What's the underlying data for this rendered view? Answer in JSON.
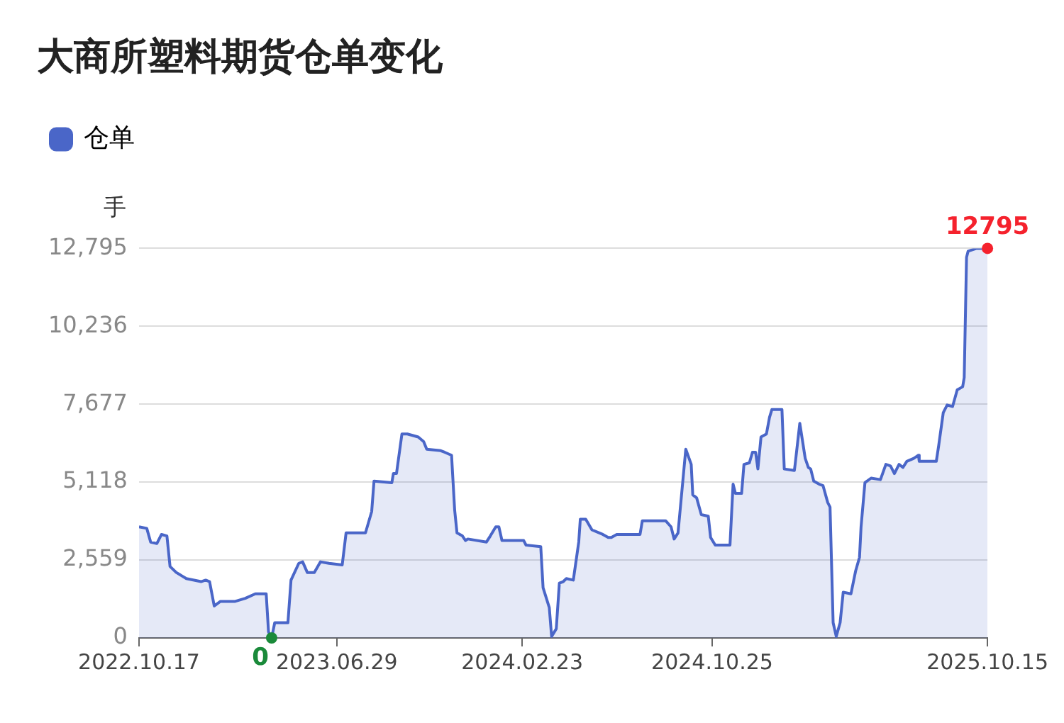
{
  "chart_data": {
    "type": "area",
    "title": "大商所塑料期货仓单变化",
    "ylabel": "手",
    "legend": "top left",
    "grid": "y",
    "x": [
      "2022-10-17",
      "2022-10-27",
      "2022-11-01",
      "2022-11-09",
      "2022-11-15",
      "2022-11-22",
      "2022-11-26",
      "2022-12-04",
      "2022-12-17",
      "2023-01-05",
      "2023-01-11",
      "2023-01-16",
      "2023-01-22",
      "2023-01-30",
      "2023-02-18",
      "2023-03-03",
      "2023-03-16",
      "2023-03-30",
      "2023-04-02",
      "2023-04-06",
      "2023-04-10",
      "2023-04-27",
      "2023-05-01",
      "2023-05-11",
      "2023-05-16",
      "2023-05-22",
      "2023-05-31",
      "2023-06-08",
      "2023-06-19",
      "2023-07-06",
      "2023-07-11",
      "2023-08-05",
      "2023-08-13",
      "2023-08-16",
      "2023-09-08",
      "2023-09-10",
      "2023-09-14",
      "2023-09-21",
      "2023-09-28",
      "2023-10-12",
      "2023-10-19",
      "2023-10-23",
      "2023-11-10",
      "2023-11-15",
      "2023-11-24",
      "2023-11-28",
      "2023-12-01",
      "2023-12-08",
      "2023-12-12",
      "2023-12-15",
      "2024-01-08",
      "2024-01-13",
      "2024-01-20",
      "2024-01-24",
      "2024-01-28",
      "2024-02-25",
      "2024-02-28",
      "2024-03-18",
      "2024-03-21",
      "2024-03-29",
      "2024-04-01",
      "2024-04-07",
      "2024-04-11",
      "2024-04-16",
      "2024-04-20",
      "2024-04-29",
      "2024-05-06",
      "2024-05-08",
      "2024-05-15",
      "2024-05-23",
      "2024-06-06",
      "2024-06-13",
      "2024-06-17",
      "2024-06-24",
      "2024-07-24",
      "2024-07-27",
      "2024-08-26",
      "2024-09-02",
      "2024-09-06",
      "2024-09-11",
      "2024-09-17",
      "2024-09-21",
      "2024-09-28",
      "2024-09-30",
      "2024-10-05",
      "2024-10-11",
      "2024-10-20",
      "2024-10-23",
      "2024-10-29",
      "2024-11-17",
      "2024-11-21",
      "2024-11-24",
      "2024-12-02",
      "2024-12-05",
      "2024-12-12",
      "2024-12-16",
      "2024-12-20",
      "2024-12-23",
      "2024-12-27",
      "2025-01-03",
      "2025-01-07",
      "2025-01-10",
      "2025-01-23",
      "2025-01-26",
      "2025-02-08",
      "2025-02-09",
      "2025-02-15",
      "2025-02-22",
      "2025-02-26",
      "2025-03-01",
      "2025-03-05",
      "2025-03-12",
      "2025-03-17",
      "2025-03-23",
      "2025-03-26",
      "2025-03-30",
      "2025-04-03",
      "2025-04-08",
      "2025-04-12",
      "2025-04-22",
      "2025-04-28",
      "2025-05-03",
      "2025-05-05",
      "2025-05-10",
      "2025-05-18",
      "2025-05-30",
      "2025-06-06",
      "2025-06-12",
      "2025-06-17",
      "2025-06-23",
      "2025-06-28",
      "2025-07-03",
      "2025-07-12",
      "2025-07-18",
      "2025-07-19",
      "2025-08-10",
      "2025-08-13",
      "2025-08-19",
      "2025-08-24",
      "2025-08-31",
      "2025-09-06",
      "2025-09-13",
      "2025-09-15",
      "2025-09-18",
      "2025-09-20",
      "2025-10-01",
      "2025-10-15"
    ],
    "series": [
      {
        "name": "仓单",
        "color": "#4a66c8",
        "values": [
          3650,
          3600,
          3150,
          3100,
          3400,
          3350,
          2350,
          2150,
          1950,
          1850,
          1900,
          1850,
          1050,
          1200,
          1200,
          1300,
          1450,
          1450,
          200,
          0,
          500,
          500,
          1900,
          2450,
          2500,
          2150,
          2150,
          2500,
          2450,
          2400,
          3450,
          3450,
          4150,
          5150,
          5100,
          5400,
          5400,
          6700,
          6700,
          6600,
          6450,
          6200,
          6150,
          6100,
          6000,
          4200,
          3450,
          3350,
          3200,
          3250,
          3150,
          3350,
          3650,
          3650,
          3200,
          3200,
          3050,
          3000,
          1650,
          1000,
          50,
          300,
          1800,
          1850,
          1950,
          1900,
          3150,
          3900,
          3900,
          3550,
          3400,
          3300,
          3300,
          3400,
          3400,
          3850,
          3850,
          3650,
          3250,
          3450,
          5100,
          6200,
          5700,
          4700,
          4600,
          4050,
          4000,
          3300,
          3050,
          3050,
          5050,
          4750,
          4750,
          5700,
          5750,
          6100,
          6100,
          5550,
          6600,
          6700,
          7250,
          7500,
          7500,
          5550,
          5500,
          5700,
          7050,
          5900,
          5600,
          5550,
          5150,
          5050,
          5000,
          4450,
          4300,
          500,
          50,
          500,
          1500,
          1450,
          2200,
          2650,
          3650,
          5100,
          5250,
          5200,
          5700,
          5650,
          5400,
          5700,
          5600,
          5800,
          5900,
          6000,
          5800,
          5800,
          6300,
          7400,
          7650,
          7600,
          8150,
          8250,
          8550,
          12500,
          12700,
          12795,
          12795
        ]
      }
    ],
    "xlim": [
      "2022-10-17",
      "2025-10-15"
    ],
    "xticks": [
      {
        "value": "2022-10-17",
        "label": "2022.10.17"
      },
      {
        "value": "2023-06-29",
        "label": "2023.06.29"
      },
      {
        "value": "2024-02-23",
        "label": "2024.02.23"
      },
      {
        "value": "2024-10-25",
        "label": "2024.10.25"
      },
      {
        "value": "2025-10-15",
        "label": "2025.10.15"
      }
    ],
    "ylim": [
      0,
      12795
    ],
    "yticks": [
      0,
      {
        "value": 2559,
        "label": "2,559"
      },
      {
        "value": 5118,
        "label": "5,118"
      },
      {
        "value": 7677,
        "label": "7,677"
      },
      {
        "value": 10236,
        "label": "10,236"
      },
      {
        "value": 12795,
        "label": "12,795"
      }
    ],
    "annotations": [
      {
        "text": "0",
        "x": "2023-04-06",
        "y": 0
      },
      {
        "text": "12795",
        "x": "2025-10-15",
        "y": 12795
      }
    ]
  }
}
